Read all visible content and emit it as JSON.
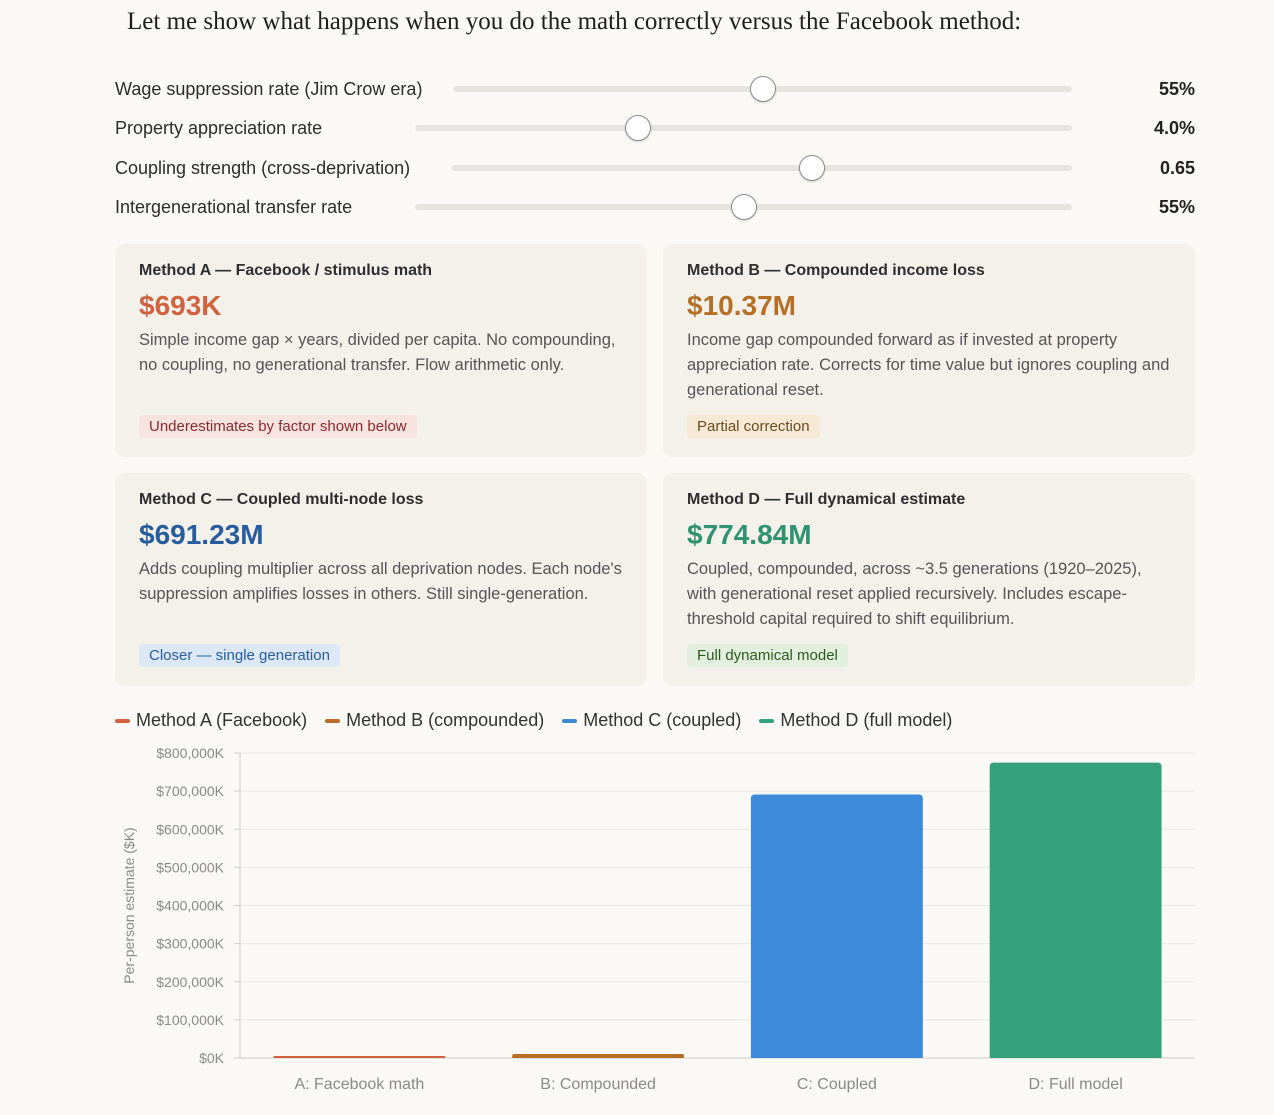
{
  "heading": "Let me show what happens when you do the math correctly versus the Facebook method:",
  "sliders": [
    {
      "label": "Wage suppression rate (Jim Crow era)",
      "value": "55%",
      "fraction": 0.5
    },
    {
      "label": "Property appreciation rate",
      "value": "4.0%",
      "fraction": 0.34
    },
    {
      "label": "Coupling strength (cross-deprivation)",
      "value": "0.65",
      "fraction": 0.58
    },
    {
      "label": "Intergenerational transfer rate",
      "value": "55%",
      "fraction": 0.5
    }
  ],
  "cards": [
    {
      "title": "Method A — Facebook / stimulus math",
      "value": "$693K",
      "desc": "Simple income gap × years, divided per capita. No compounding, no coupling, no generational transfer. Flow arithmetic only.",
      "badge": "Underestimates by factor shown below",
      "color": "#d1623f",
      "badge_bg": "#f7e3e0",
      "badge_fg": "#8a2a2a"
    },
    {
      "title": "Method B — Compounded income loss",
      "value": "$10.37M",
      "desc": "Income gap compounded forward as if invested at property appreciation rate. Corrects for time value but ignores coupling and generational reset.",
      "badge": "Partial correction",
      "color": "#b56f26",
      "badge_bg": "#f6ead7",
      "badge_fg": "#6b4a1e"
    },
    {
      "title": "Method C — Coupled multi-node loss",
      "value": "$691.23M",
      "desc": "Adds coupling multiplier across all deprivation nodes. Each node's suppression amplifies losses in others. Still single-generation.",
      "badge": "Closer — single generation",
      "color": "#275d9e",
      "badge_bg": "#dde8f7",
      "badge_fg": "#275d9e"
    },
    {
      "title": "Method D — Full dynamical estimate",
      "value": "$774.84M",
      "desc": "Coupled, compounded, across ~3.5 generations (1920–2025), with generational reset applied recursively. Includes escape-threshold capital required to shift equilibrium.",
      "badge": "Full dynamical model",
      "color": "#2f9270",
      "badge_bg": "#e2efdf",
      "badge_fg": "#2b5a1f"
    }
  ],
  "legend": [
    {
      "label": "Method A (Facebook)",
      "color": "#d1623f"
    },
    {
      "label": "Method B (compounded)",
      "color": "#b56f26"
    },
    {
      "label": "Method C (coupled)",
      "color": "#3d8ad8"
    },
    {
      "label": "Method D (full model)",
      "color": "#35a07c"
    }
  ],
  "chart_data": {
    "type": "bar",
    "categories": [
      "A: Facebook math",
      "B: Compounded",
      "C: Coupled",
      "D: Full model"
    ],
    "values": [
      693,
      10370,
      691230,
      774840
    ],
    "colors": [
      "#d1623f",
      "#b56f26",
      "#3d8ad8",
      "#35a07c"
    ],
    "ylabel": "Per-person estimate ($K)",
    "ylim": [
      0,
      800000
    ],
    "yticks": [
      0,
      100000,
      200000,
      300000,
      400000,
      500000,
      600000,
      700000,
      800000
    ],
    "ytick_labels": [
      "$0K",
      "$100,000K",
      "$200,000K",
      "$300,000K",
      "$400,000K",
      "$500,000K",
      "$600,000K",
      "$700,000K",
      "$800,000K"
    ],
    "grid": true
  }
}
